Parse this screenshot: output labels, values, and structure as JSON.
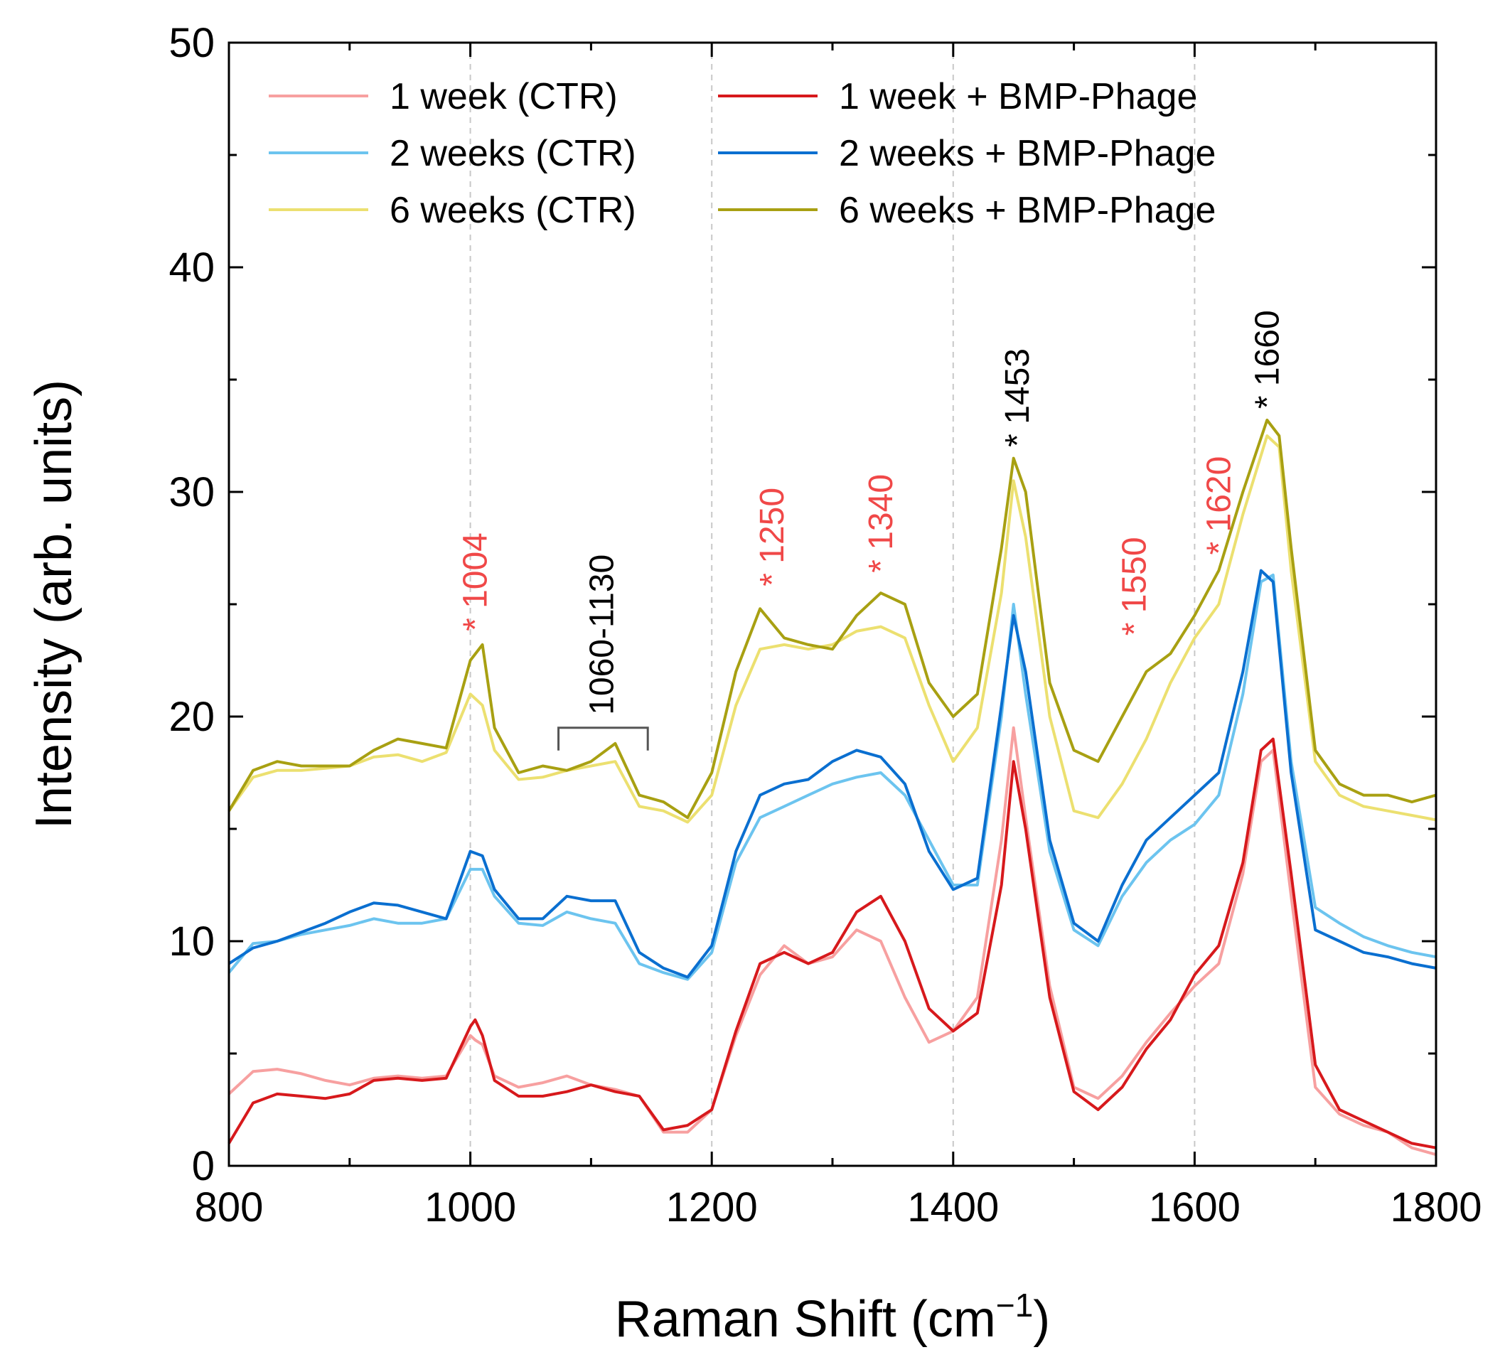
{
  "chart_data": {
    "type": "line",
    "title": "",
    "xlabel": "Raman Shift (cm",
    "xlabel_sup": "−1",
    "xlabel_suffix": ")",
    "ylabel": "Intensity (arb. units)",
    "xlim": [
      800,
      1800
    ],
    "ylim": [
      0,
      50
    ],
    "xticks": [
      800,
      1000,
      1200,
      1400,
      1600,
      1800
    ],
    "xtick_labels": [
      "800",
      "1000",
      "1200",
      "1400",
      "1600",
      "1800"
    ],
    "yticks": [
      0,
      10,
      20,
      30,
      40,
      50
    ],
    "ytick_labels": [
      "0",
      "10",
      "20",
      "30",
      "40",
      "50"
    ],
    "grid": false,
    "vertical_reference_lines": [
      1000,
      1200,
      1400,
      1600
    ],
    "legend_position": "top",
    "annotations": [
      {
        "label": "1004",
        "star": true,
        "x": 1004,
        "y": 23.8,
        "color": "#f04848"
      },
      {
        "label": "1250",
        "star": true,
        "x": 1250,
        "y": 25.8,
        "color": "#f04848"
      },
      {
        "label": "1340",
        "star": true,
        "x": 1340,
        "y": 26.4,
        "color": "#f04848"
      },
      {
        "label": "1453",
        "star": true,
        "x": 1453,
        "y": 32.0,
        "color": "#000000"
      },
      {
        "label": "1550",
        "star": true,
        "x": 1550,
        "y": 23.6,
        "color": "#f04848"
      },
      {
        "label": "1620",
        "star": true,
        "x": 1620,
        "y": 27.2,
        "color": "#f04848"
      },
      {
        "label": "1660",
        "star": true,
        "x": 1660,
        "y": 33.7,
        "color": "#000000"
      }
    ],
    "bracket": {
      "label": "1060-1130",
      "x_start": 1073,
      "x_end": 1147,
      "y": 19.5
    },
    "series": [
      {
        "name": "1 week (CTR)",
        "color": "#f7a0a0",
        "x": [
          800,
          820,
          840,
          860,
          880,
          900,
          920,
          940,
          960,
          980,
          1000,
          1004,
          1010,
          1020,
          1040,
          1060,
          1080,
          1100,
          1120,
          1140,
          1160,
          1180,
          1200,
          1220,
          1240,
          1260,
          1280,
          1300,
          1320,
          1340,
          1360,
          1380,
          1400,
          1420,
          1440,
          1450,
          1460,
          1480,
          1500,
          1520,
          1540,
          1560,
          1580,
          1600,
          1620,
          1640,
          1655,
          1665,
          1680,
          1700,
          1720,
          1740,
          1760,
          1780,
          1800
        ],
        "values": [
          3.2,
          4.2,
          4.3,
          4.1,
          3.8,
          3.6,
          3.9,
          4.0,
          3.9,
          4.0,
          5.8,
          5.6,
          5.4,
          4.0,
          3.5,
          3.7,
          4.0,
          3.6,
          3.4,
          3.1,
          1.5,
          1.5,
          2.5,
          5.8,
          8.5,
          9.8,
          9.0,
          9.3,
          10.5,
          10.0,
          7.5,
          5.5,
          6.0,
          7.5,
          14.5,
          19.5,
          15.5,
          8.0,
          3.5,
          3.0,
          4.0,
          5.5,
          6.8,
          8.0,
          9.0,
          13.0,
          18.0,
          18.5,
          12.0,
          3.5,
          2.3,
          1.8,
          1.5,
          0.8,
          0.5
        ]
      },
      {
        "name": "1 week + BMP-Phage",
        "color": "#d7191c",
        "x": [
          800,
          820,
          840,
          860,
          880,
          900,
          920,
          940,
          960,
          980,
          1000,
          1004,
          1010,
          1020,
          1040,
          1060,
          1080,
          1100,
          1120,
          1140,
          1160,
          1180,
          1200,
          1220,
          1240,
          1260,
          1280,
          1300,
          1320,
          1340,
          1360,
          1380,
          1400,
          1420,
          1440,
          1450,
          1460,
          1480,
          1500,
          1520,
          1540,
          1560,
          1580,
          1600,
          1620,
          1640,
          1655,
          1665,
          1680,
          1700,
          1720,
          1740,
          1760,
          1780,
          1800
        ],
        "values": [
          1.0,
          2.8,
          3.2,
          3.1,
          3.0,
          3.2,
          3.8,
          3.9,
          3.8,
          3.9,
          6.2,
          6.5,
          5.8,
          3.8,
          3.1,
          3.1,
          3.3,
          3.6,
          3.3,
          3.1,
          1.6,
          1.8,
          2.5,
          6.0,
          9.0,
          9.5,
          9.0,
          9.5,
          11.3,
          12.0,
          10.0,
          7.0,
          6.0,
          6.8,
          12.5,
          18.0,
          15.0,
          7.5,
          3.3,
          2.5,
          3.5,
          5.2,
          6.5,
          8.5,
          9.8,
          13.5,
          18.5,
          19.0,
          13.0,
          4.5,
          2.5,
          2.0,
          1.5,
          1.0,
          0.8
        ]
      },
      {
        "name": "2 weeks (CTR)",
        "color": "#6cc4ef",
        "x": [
          800,
          820,
          840,
          860,
          880,
          900,
          920,
          940,
          960,
          980,
          1000,
          1010,
          1020,
          1040,
          1060,
          1080,
          1100,
          1120,
          1140,
          1160,
          1180,
          1200,
          1220,
          1240,
          1260,
          1280,
          1300,
          1320,
          1340,
          1360,
          1380,
          1400,
          1420,
          1440,
          1450,
          1460,
          1480,
          1500,
          1520,
          1540,
          1560,
          1580,
          1600,
          1620,
          1640,
          1655,
          1665,
          1680,
          1700,
          1720,
          1740,
          1760,
          1780,
          1800
        ],
        "values": [
          8.6,
          9.9,
          10.0,
          10.3,
          10.5,
          10.7,
          11.0,
          10.8,
          10.8,
          11.0,
          13.2,
          13.2,
          12.0,
          10.8,
          10.7,
          11.3,
          11.0,
          10.8,
          9.0,
          8.6,
          8.3,
          9.5,
          13.5,
          15.5,
          16.0,
          16.5,
          17.0,
          17.3,
          17.5,
          16.5,
          14.5,
          12.5,
          12.5,
          20.0,
          25.0,
          21.0,
          14.0,
          10.5,
          9.8,
          12.0,
          13.5,
          14.5,
          15.2,
          16.5,
          21.0,
          26.0,
          26.3,
          18.0,
          11.5,
          10.8,
          10.2,
          9.8,
          9.5,
          9.3
        ]
      },
      {
        "name": "2 weeks +  BMP-Phage",
        "color": "#0a6fd0",
        "x": [
          800,
          820,
          840,
          860,
          880,
          900,
          920,
          940,
          960,
          980,
          1000,
          1010,
          1020,
          1040,
          1060,
          1080,
          1100,
          1120,
          1140,
          1160,
          1180,
          1200,
          1220,
          1240,
          1260,
          1280,
          1300,
          1320,
          1340,
          1360,
          1380,
          1400,
          1420,
          1440,
          1450,
          1460,
          1480,
          1500,
          1520,
          1540,
          1560,
          1580,
          1600,
          1620,
          1640,
          1655,
          1665,
          1680,
          1700,
          1720,
          1740,
          1760,
          1780,
          1800
        ],
        "values": [
          9.0,
          9.7,
          10.0,
          10.4,
          10.8,
          11.3,
          11.7,
          11.6,
          11.3,
          11.0,
          14.0,
          13.8,
          12.3,
          11.0,
          11.0,
          12.0,
          11.8,
          11.8,
          9.5,
          8.8,
          8.4,
          9.8,
          14.0,
          16.5,
          17.0,
          17.2,
          18.0,
          18.5,
          18.2,
          17.0,
          14.0,
          12.3,
          12.8,
          20.5,
          24.5,
          22.0,
          14.5,
          10.8,
          10.0,
          12.5,
          14.5,
          15.5,
          16.5,
          17.5,
          22.0,
          26.5,
          26.0,
          17.5,
          10.5,
          10.0,
          9.5,
          9.3,
          9.0,
          8.8
        ]
      },
      {
        "name": "6 weeks (CTR)",
        "color": "#ece070",
        "x": [
          800,
          820,
          840,
          860,
          880,
          900,
          920,
          940,
          960,
          980,
          1000,
          1010,
          1020,
          1040,
          1060,
          1080,
          1100,
          1120,
          1140,
          1160,
          1180,
          1200,
          1220,
          1240,
          1260,
          1280,
          1300,
          1320,
          1340,
          1360,
          1380,
          1400,
          1420,
          1440,
          1450,
          1460,
          1480,
          1500,
          1520,
          1540,
          1560,
          1580,
          1600,
          1620,
          1640,
          1660,
          1670,
          1680,
          1700,
          1720,
          1740,
          1760,
          1780,
          1800
        ],
        "values": [
          15.8,
          17.3,
          17.6,
          17.6,
          17.7,
          17.8,
          18.2,
          18.3,
          18.0,
          18.4,
          21.0,
          20.5,
          18.5,
          17.2,
          17.3,
          17.6,
          17.8,
          18.0,
          16.0,
          15.8,
          15.3,
          16.5,
          20.5,
          23.0,
          23.2,
          23.0,
          23.2,
          23.8,
          24.0,
          23.5,
          20.5,
          18.0,
          19.5,
          25.5,
          30.5,
          28.0,
          20.0,
          15.8,
          15.5,
          17.0,
          19.0,
          21.5,
          23.5,
          25.0,
          29.0,
          32.5,
          32.0,
          26.5,
          18.0,
          16.5,
          16.0,
          15.8,
          15.6,
          15.4
        ]
      },
      {
        "name": "6 weeks +  BMP-Phage",
        "color": "#a8a012",
        "x": [
          800,
          820,
          840,
          860,
          880,
          900,
          920,
          940,
          960,
          980,
          1000,
          1010,
          1020,
          1040,
          1060,
          1080,
          1100,
          1120,
          1140,
          1160,
          1180,
          1200,
          1220,
          1240,
          1260,
          1280,
          1300,
          1320,
          1340,
          1360,
          1380,
          1400,
          1420,
          1440,
          1450,
          1460,
          1480,
          1500,
          1520,
          1540,
          1560,
          1580,
          1600,
          1620,
          1640,
          1660,
          1670,
          1680,
          1700,
          1720,
          1740,
          1760,
          1780,
          1800
        ],
        "values": [
          15.8,
          17.6,
          18.0,
          17.8,
          17.8,
          17.8,
          18.5,
          19.0,
          18.8,
          18.6,
          22.5,
          23.2,
          19.5,
          17.5,
          17.8,
          17.6,
          18.0,
          18.8,
          16.5,
          16.2,
          15.5,
          17.5,
          22.0,
          24.8,
          23.5,
          23.2,
          23.0,
          24.5,
          25.5,
          25.0,
          21.5,
          20.0,
          21.0,
          27.5,
          31.5,
          30.0,
          21.5,
          18.5,
          18.0,
          20.0,
          22.0,
          22.8,
          24.5,
          26.5,
          30.0,
          33.2,
          32.5,
          27.5,
          18.5,
          17.0,
          16.5,
          16.5,
          16.2,
          16.5
        ]
      }
    ]
  }
}
